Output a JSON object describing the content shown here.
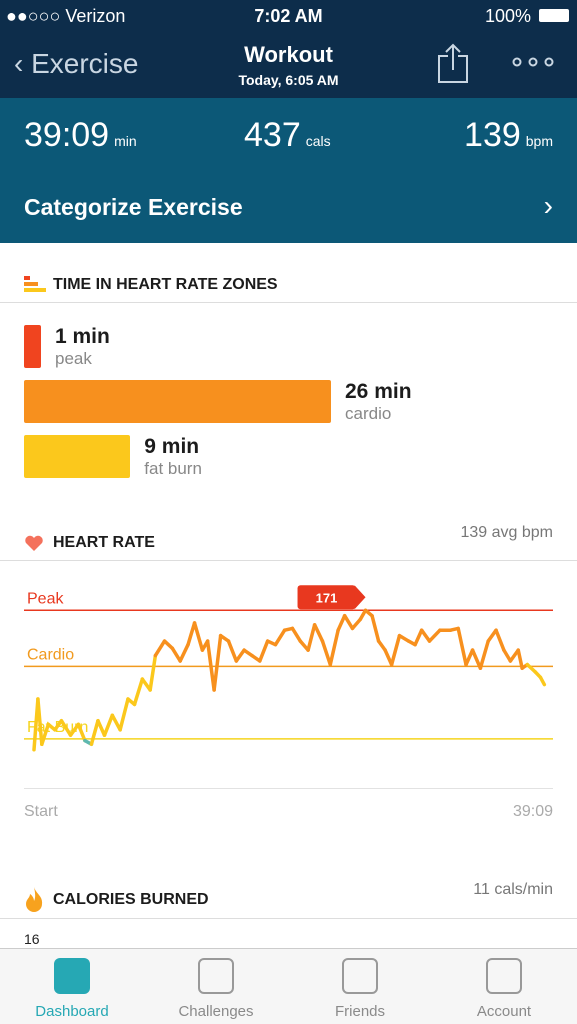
{
  "status_bar": {
    "carrier": "●●○○○ Verizon",
    "time": "7:02 AM",
    "battery": "100%"
  },
  "header": {
    "back": "Exercise",
    "title": "Workout",
    "subtitle": "Today, 6:05 AM"
  },
  "stats": [
    {
      "value": "39:09",
      "unit": "min"
    },
    {
      "value": "437",
      "unit": "cals"
    },
    {
      "value": "139",
      "unit": "bpm"
    }
  ],
  "categorize": "Categorize Exercise",
  "zones_section": {
    "title": "TIME IN HEART RATE ZONES",
    "zones": [
      {
        "value": 1,
        "label": "1 min",
        "name": "peak",
        "color": "#f0441f"
      },
      {
        "value": 26,
        "label": "26 min",
        "name": "cardio",
        "color": "#f7901e"
      },
      {
        "value": 9,
        "label": "9 min",
        "name": "fat burn",
        "color": "#fbc81c"
      }
    ]
  },
  "heart_rate": {
    "title": "HEART RATE",
    "avg": "139 avg bpm",
    "start": "Start",
    "end": "39:09",
    "peak_label": "171",
    "chart_data": {
      "type": "line",
      "xlim": [
        0,
        39.15
      ],
      "ylim": [
        85,
        180
      ],
      "reference_lines": [
        {
          "name": "Peak",
          "value": 171,
          "color": "#e8381f"
        },
        {
          "name": "Cardio",
          "value": 140,
          "color": "#f19a1e"
        },
        {
          "name": "Fat Burn",
          "value": 100,
          "color": "#f5d41e"
        }
      ],
      "x": [
        0,
        0.3,
        0.6,
        1.1,
        1.6,
        2.1,
        2.8,
        3.4,
        3.9,
        4.4,
        4.9,
        5.4,
        6.0,
        6.6,
        7.2,
        7.7,
        8.3,
        8.9,
        9.3,
        10.0,
        10.6,
        11.2,
        11.8,
        12.3,
        12.9,
        13.3,
        13.8,
        14.3,
        14.9,
        15.5,
        16.1,
        16.7,
        17.3,
        17.9,
        18.5,
        19.2,
        19.8,
        20.4,
        21.0,
        21.5,
        22.1,
        22.7,
        23.3,
        23.8,
        24.4,
        25.0,
        25.4,
        25.9,
        26.4,
        26.9,
        27.4,
        28.0,
        28.7,
        29.2,
        29.7,
        30.3,
        31.1,
        31.9,
        32.5,
        33.1,
        33.6,
        34.2,
        34.8,
        35.4,
        36.0,
        36.5,
        37.1,
        37.4,
        37.8,
        38.4,
        38.8,
        39.1
      ],
      "values": [
        94,
        122,
        97,
        108,
        105,
        110,
        102,
        108,
        99,
        97,
        110,
        102,
        113,
        105,
        122,
        119,
        133,
        127,
        146,
        154,
        150,
        143,
        152,
        164,
        149,
        154,
        127,
        157,
        154,
        143,
        149,
        146,
        143,
        154,
        152,
        160,
        161,
        154,
        149,
        163,
        154,
        141,
        160,
        168,
        161,
        166,
        171,
        168,
        154,
        149,
        141,
        157,
        154,
        152,
        160,
        154,
        160,
        160,
        161,
        141,
        149,
        139,
        154,
        160,
        149,
        143,
        149,
        139,
        141,
        137,
        134,
        130
      ]
    }
  },
  "calories": {
    "title": "CALORIES BURNED",
    "rate": "11 cals/min",
    "axis_top": "16"
  },
  "tabs": [
    "Dashboard",
    "Challenges",
    "Friends",
    "Account"
  ]
}
